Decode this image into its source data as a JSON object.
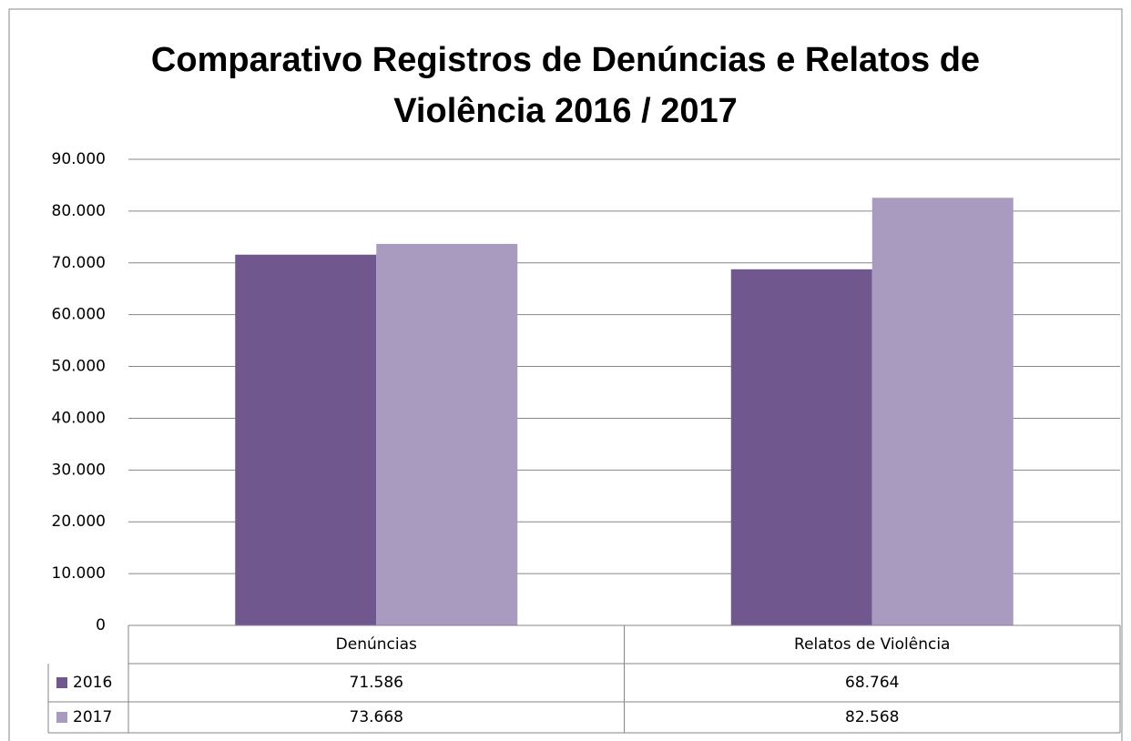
{
  "chart_data": {
    "type": "bar",
    "title": "Comparativo Registros de Denúncias e Relatos de\nViolência 2016 / 2017",
    "categories": [
      "Denúncias",
      "Relatos de Violência"
    ],
    "series": [
      {
        "name": "2016",
        "color": "#70588e",
        "values": [
          71586,
          68764
        ],
        "value_labels": [
          "71.586",
          "68.764"
        ]
      },
      {
        "name": "2017",
        "color": "#a99bc0",
        "values": [
          73668,
          82568
        ],
        "value_labels": [
          "73.668",
          "82.568"
        ]
      }
    ],
    "ylim": [
      0,
      90000
    ],
    "yticks": [
      0,
      {
        "value": 10000,
        "label": "10.000"
      },
      {
        "value": 20000,
        "label": "20.000"
      },
      {
        "value": 30000,
        "label": "30.000"
      },
      {
        "value": 40000,
        "label": "40.000"
      },
      {
        "value": 50000,
        "label": "50.000"
      },
      {
        "value": 60000,
        "label": "60.000"
      },
      {
        "value": 70000,
        "label": "70.000"
      },
      {
        "value": 80000,
        "label": "80.000"
      },
      {
        "value": 90000,
        "label": "90.000"
      }
    ],
    "grid": true,
    "legend": "table"
  }
}
